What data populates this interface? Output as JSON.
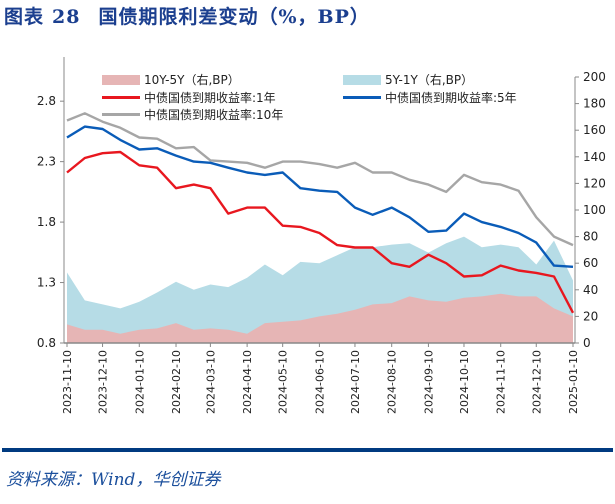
{
  "header": {
    "prefix": "图表",
    "number": "28",
    "title": "国债期限利差变动（%，BP）"
  },
  "source": "资料来源：Wind，华创证券",
  "chart_data": {
    "type": "line+area",
    "title": "国债期限利差变动（%，BP）",
    "x": [
      "2023-11-10",
      "2023-11-25",
      "2023-12-10",
      "2023-12-25",
      "2024-01-10",
      "2024-01-25",
      "2024-02-10",
      "2024-02-25",
      "2024-03-10",
      "2024-03-25",
      "2024-04-10",
      "2024-04-25",
      "2024-05-10",
      "2024-05-25",
      "2024-06-10",
      "2024-06-25",
      "2024-07-10",
      "2024-07-25",
      "2024-08-10",
      "2024-08-25",
      "2024-09-10",
      "2024-09-25",
      "2024-10-10",
      "2024-10-25",
      "2024-11-10",
      "2024-11-25",
      "2024-12-10",
      "2024-12-25",
      "2025-01-10"
    ],
    "x_tick_labels": [
      "2023-11-10",
      "2023-12-10",
      "2024-01-10",
      "2024-02-10",
      "2024-03-10",
      "2024-04-10",
      "2024-05-10",
      "2024-06-10",
      "2024-07-10",
      "2024-08-10",
      "2024-09-10",
      "2024-10-10",
      "2024-11-10",
      "2024-12-10",
      "2025-01-10"
    ],
    "y_left": {
      "range": [
        0.8,
        3.0
      ],
      "ticks": [
        "0.8",
        "1.3",
        "1.8",
        "2.3",
        "2.8"
      ]
    },
    "y_right": {
      "range": [
        0,
        200
      ],
      "ticks": [
        "0",
        "20",
        "40",
        "60",
        "80",
        "100",
        "120",
        "140",
        "160",
        "180",
        "200"
      ]
    },
    "legend_placement": "top",
    "grid": false,
    "series": [
      {
        "name": "10Y-5Y（右,BP）",
        "type": "area",
        "axis": "right",
        "color": "#e6b5b5",
        "values": [
          14,
          10,
          10,
          7,
          10,
          11,
          15,
          10,
          11,
          10,
          7,
          15,
          16,
          17,
          20,
          22,
          25,
          29,
          30,
          35,
          32,
          31,
          34,
          35,
          37,
          35,
          35,
          26,
          20
        ]
      },
      {
        "name": "5Y-1Y（右,BP）",
        "type": "area",
        "axis": "right",
        "color": "#b6dce6",
        "values": [
          53,
          32,
          29,
          26,
          31,
          38,
          46,
          40,
          44,
          42,
          49,
          59,
          51,
          61,
          60,
          66,
          72,
          72,
          74,
          75,
          68,
          75,
          80,
          72,
          74,
          72,
          59,
          77,
          47
        ]
      },
      {
        "name": "中债国债到期收益率:1年",
        "type": "line",
        "axis": "left",
        "color": "#e8171f",
        "values": [
          2.21,
          2.33,
          2.37,
          2.38,
          2.27,
          2.25,
          2.08,
          2.11,
          2.08,
          1.87,
          1.92,
          1.92,
          1.77,
          1.76,
          1.71,
          1.61,
          1.59,
          1.59,
          1.46,
          1.43,
          1.53,
          1.46,
          1.35,
          1.36,
          1.44,
          1.4,
          1.38,
          1.35,
          1.05
        ]
      },
      {
        "name": "中债国债到期收益率:5年",
        "type": "line",
        "axis": "left",
        "color": "#0a5cb8",
        "values": [
          2.5,
          2.59,
          2.57,
          2.48,
          2.4,
          2.41,
          2.35,
          2.3,
          2.29,
          2.25,
          2.21,
          2.19,
          2.21,
          2.08,
          2.06,
          2.05,
          1.92,
          1.86,
          1.92,
          1.84,
          1.72,
          1.73,
          1.87,
          1.8,
          1.76,
          1.71,
          1.63,
          1.44,
          1.43
        ]
      },
      {
        "name": "中债国债到期收益率:10年",
        "type": "line",
        "axis": "left",
        "color": "#a6a6a6",
        "values": [
          2.64,
          2.7,
          2.63,
          2.58,
          2.5,
          2.49,
          2.41,
          2.42,
          2.31,
          2.3,
          2.29,
          2.25,
          2.3,
          2.3,
          2.28,
          2.25,
          2.29,
          2.21,
          2.21,
          2.15,
          2.11,
          2.05,
          2.19,
          2.13,
          2.11,
          2.06,
          1.84,
          1.68,
          1.61
        ]
      }
    ]
  }
}
